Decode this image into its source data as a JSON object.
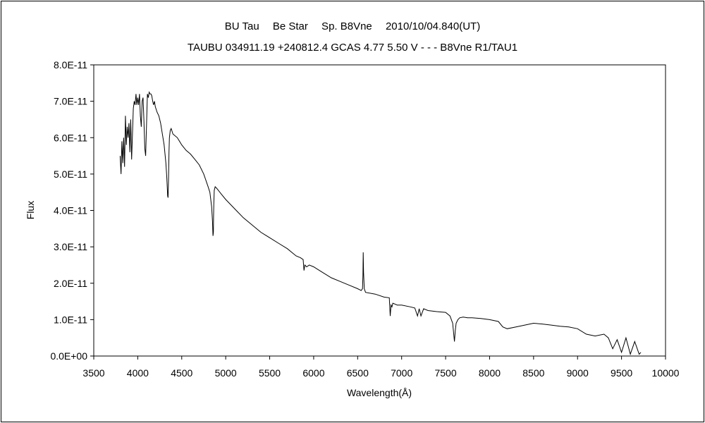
{
  "chart_data": {
    "type": "line",
    "title": "BU Tau　 Be Star　 Sp. B8Vne　 2010/10/04.840(UT)",
    "subtitle": "TAUBU 034911.19 +240812.4 GCAS 4.77 5.50 V - - - B8Vne R1/TAU1",
    "xlabel": "Wavelength(Å)",
    "ylabel": "Flux",
    "xlim": [
      3500,
      10000
    ],
    "ylim": [
      0,
      8e-11
    ],
    "x_ticks": [
      3500,
      4000,
      4500,
      5000,
      5500,
      6000,
      6500,
      7000,
      7500,
      8000,
      8500,
      9000,
      9500,
      10000
    ],
    "x_tick_labels": [
      "3500",
      "4000",
      "4500",
      "5000",
      "5500",
      "6000",
      "6500",
      "7000",
      "7500",
      "8000",
      "8500",
      "9000",
      "9500",
      "10000"
    ],
    "y_ticks": [
      0,
      1e-11,
      2e-11,
      3e-11,
      4e-11,
      5e-11,
      6e-11,
      7e-11,
      8e-11
    ],
    "y_tick_labels": [
      "0.0E+00",
      "1.0E-11",
      "2.0E-11",
      "3.0E-11",
      "4.0E-11",
      "5.0E-11",
      "6.0E-11",
      "7.0E-11",
      "8.0E-11"
    ],
    "grid": false,
    "legend": "none",
    "line_color": "#000000",
    "series": [
      {
        "x": [
          3800,
          3810,
          3820,
          3830,
          3840,
          3850,
          3860,
          3870,
          3880,
          3890,
          3900,
          3910,
          3920,
          3930,
          3940,
          3950,
          3960,
          3970,
          3980,
          3990,
          4000,
          4010,
          4020,
          4030,
          4040,
          4050,
          4060,
          4070,
          4080,
          4090,
          4100,
          4110,
          4120,
          4130,
          4140,
          4150,
          4160,
          4170,
          4180,
          4190,
          4200,
          4220,
          4240,
          4260,
          4280,
          4300,
          4320,
          4330,
          4340,
          4345,
          4350,
          4355,
          4360,
          4370,
          4380,
          4400,
          4450,
          4500,
          4550,
          4600,
          4650,
          4700,
          4750,
          4800,
          4820,
          4840,
          4850,
          4855,
          4860,
          4862,
          4865,
          4870,
          4880,
          4900,
          4950,
          5000,
          5100,
          5200,
          5300,
          5400,
          5500,
          5600,
          5700,
          5800,
          5850,
          5880,
          5890,
          5900,
          5920,
          5950,
          6000,
          6100,
          6200,
          6300,
          6400,
          6500,
          6540,
          6555,
          6560,
          6563,
          6567,
          6575,
          6590,
          6700,
          6800,
          6860,
          6870,
          6880,
          6890,
          6900,
          6950,
          7000,
          7100,
          7150,
          7180,
          7200,
          7220,
          7250,
          7300,
          7400,
          7500,
          7550,
          7580,
          7600,
          7610,
          7620,
          7640,
          7660,
          7700,
          7750,
          7800,
          7900,
          8000,
          8100,
          8150,
          8200,
          8300,
          8400,
          8500,
          8600,
          8700,
          8800,
          8900,
          9000,
          9100,
          9200,
          9300,
          9350,
          9400,
          9450,
          9500,
          9550,
          9600,
          9650,
          9700,
          9720
        ],
        "y": [
          5.5e-11,
          5e-11,
          5.9e-11,
          5.3e-11,
          6e-11,
          5.2e-11,
          6.6e-11,
          5.8e-11,
          6.3e-11,
          6e-11,
          6.4e-11,
          5.6e-11,
          6.5e-11,
          5.4e-11,
          6.1e-11,
          6.8e-11,
          7e-11,
          6.9e-11,
          7.2e-11,
          6.9e-11,
          7.1e-11,
          6.9e-11,
          7.2e-11,
          6.6e-11,
          6.3e-11,
          7e-11,
          7.1e-11,
          6.5e-11,
          5.7e-11,
          5.5e-11,
          6.4e-11,
          7.2e-11,
          7.1e-11,
          7.25e-11,
          7.2e-11,
          7.2e-11,
          7.15e-11,
          7e-11,
          6.9e-11,
          7e-11,
          6.85e-11,
          6.7e-11,
          6.6e-11,
          6.4e-11,
          6.1e-11,
          5.8e-11,
          5.3e-11,
          4.9e-11,
          4.4e-11,
          4.35e-11,
          4.9e-11,
          5.6e-11,
          6e-11,
          6.2e-11,
          6.25e-11,
          6.1e-11,
          6e-11,
          5.8e-11,
          5.65e-11,
          5.55e-11,
          5.4e-11,
          5.25e-11,
          5e-11,
          4.65e-11,
          4.5e-11,
          4.1e-11,
          3.7e-11,
          3.3e-11,
          3.4e-11,
          3.8e-11,
          4.2e-11,
          4.55e-11,
          4.65e-11,
          4.6e-11,
          4.45e-11,
          4.3e-11,
          4.05e-11,
          3.8e-11,
          3.6e-11,
          3.4e-11,
          3.25e-11,
          3.1e-11,
          2.95e-11,
          2.75e-11,
          2.7e-11,
          2.65e-11,
          2.35e-11,
          2.5e-11,
          2.45e-11,
          2.5e-11,
          2.45e-11,
          2.3e-11,
          2.15e-11,
          2.05e-11,
          1.95e-11,
          1.85e-11,
          1.8e-11,
          1.85e-11,
          2.2e-11,
          2.85e-11,
          2.3e-11,
          1.85e-11,
          1.75e-11,
          1.7e-11,
          1.62e-11,
          1.6e-11,
          1.1e-11,
          1.4e-11,
          1.35e-11,
          1.45e-11,
          1.4e-11,
          1.4e-11,
          1.35e-11,
          1.32e-11,
          1.1e-11,
          1.3e-11,
          1.1e-11,
          1.3e-11,
          1.25e-11,
          1.22e-11,
          1.2e-11,
          1.1e-11,
          9e-12,
          4e-12,
          7e-12,
          9e-12,
          1e-11,
          1.05e-11,
          1.07e-11,
          1.05e-11,
          1.05e-11,
          1.03e-11,
          1e-11,
          9.5e-12,
          8e-12,
          7.5e-12,
          8e-12,
          8.5e-12,
          9e-12,
          8.8e-12,
          8.5e-12,
          8.2e-12,
          8e-12,
          7.5e-12,
          6e-12,
          5.5e-12,
          6e-12,
          5e-12,
          2e-12,
          4.5e-12,
          1e-12,
          5e-12,
          5e-13,
          4e-12,
          5e-13,
          1e-12
        ]
      }
    ]
  }
}
